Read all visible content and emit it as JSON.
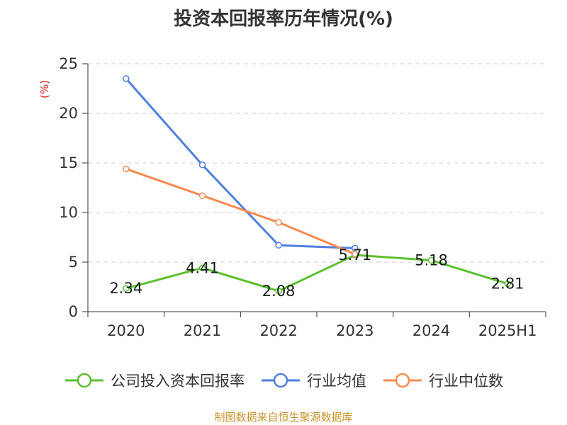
{
  "chart_data": {
    "type": "line",
    "title": "投资本回报率历年情况(%)",
    "ylabel": "(%)",
    "xlabel": "",
    "categories": [
      "2020",
      "2021",
      "2022",
      "2023",
      "2024",
      "2025H1"
    ],
    "ylim": [
      0,
      25
    ],
    "yticks": [
      0,
      5,
      10,
      15,
      20,
      25
    ],
    "grid": true,
    "legend_position": "bottom",
    "series": [
      {
        "name": "公司投入资本回报率",
        "values": [
          2.34,
          4.41,
          2.08,
          5.71,
          5.18,
          2.81
        ],
        "labels": [
          "2.34",
          "4.41",
          "2.08",
          "5.71",
          "5.18",
          "2.81"
        ],
        "color": "#5dc02f"
      },
      {
        "name": "行业均值",
        "values": [
          23.5,
          14.8,
          6.7,
          6.4,
          null,
          null
        ],
        "color": "#4f81dd"
      },
      {
        "name": "行业中位数",
        "values": [
          14.4,
          11.7,
          9.0,
          5.8,
          null,
          null
        ],
        "color": "#f7894e"
      }
    ]
  },
  "footer": {
    "source": "制图数据来自恒生聚源数据库"
  }
}
